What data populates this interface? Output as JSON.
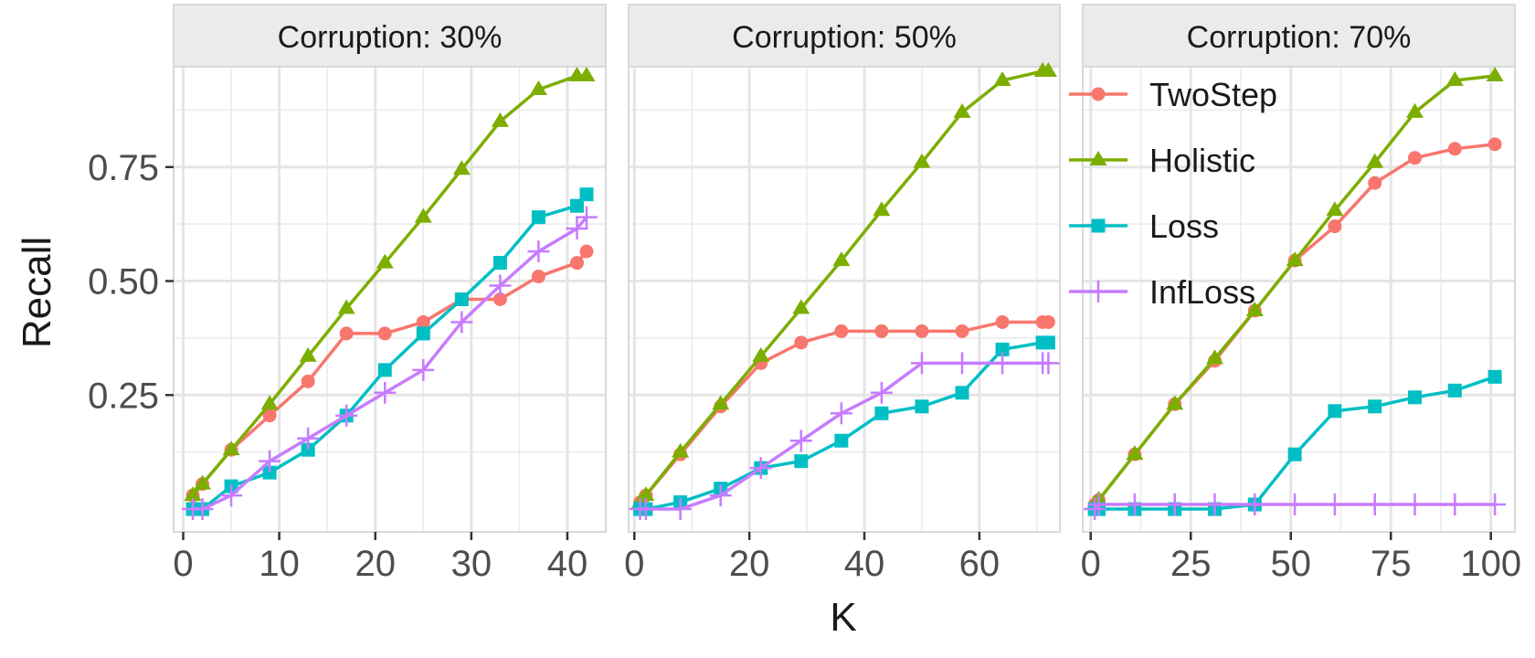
{
  "chart_data": {
    "type": "line",
    "xlabel": "K",
    "ylabel": "Recall",
    "y_ticks": [
      0.25,
      0.5,
      0.75
    ],
    "y_tick_labels": [
      "0.25",
      "0.50",
      "0.75"
    ],
    "ylim": [
      -0.05,
      0.97
    ],
    "grid": true,
    "legend_position": "right, inside last panel",
    "legend": [
      {
        "name": "TwoStep",
        "color": "#F8766D",
        "shape": "circle"
      },
      {
        "name": "Holistic",
        "color": "#7CAE00",
        "shape": "triangle"
      },
      {
        "name": "Loss",
        "color": "#00BFC4",
        "shape": "square"
      },
      {
        "name": "InfLoss",
        "color": "#C77CFF",
        "shape": "plus"
      }
    ],
    "panels": [
      {
        "strip": "Corruption: 30%",
        "xlim": [
          -1,
          44
        ],
        "x_ticks": [
          0,
          10,
          20,
          30,
          40
        ],
        "series": [
          {
            "name": "TwoStep",
            "points": [
              [
                1,
                0.03
              ],
              [
                2,
                0.055
              ],
              [
                5,
                0.13
              ],
              [
                9,
                0.205
              ],
              [
                13,
                0.28
              ],
              [
                17,
                0.385
              ],
              [
                21,
                0.385
              ],
              [
                25,
                0.41
              ],
              [
                29,
                0.46
              ],
              [
                33,
                0.46
              ],
              [
                37,
                0.51
              ],
              [
                41,
                0.54
              ],
              [
                42,
                0.565
              ]
            ]
          },
          {
            "name": "Holistic",
            "points": [
              [
                1,
                0.03
              ],
              [
                2,
                0.055
              ],
              [
                5,
                0.13
              ],
              [
                9,
                0.23
              ],
              [
                13,
                0.335
              ],
              [
                17,
                0.44
              ],
              [
                21,
                0.54
              ],
              [
                25,
                0.64
              ],
              [
                29,
                0.745
              ],
              [
                33,
                0.85
              ],
              [
                37,
                0.92
              ],
              [
                41,
                0.95
              ],
              [
                42,
                0.95
              ]
            ]
          },
          {
            "name": "Loss",
            "points": [
              [
                1,
                0.0
              ],
              [
                2,
                0.0
              ],
              [
                5,
                0.05
              ],
              [
                9,
                0.08
              ],
              [
                13,
                0.13
              ],
              [
                17,
                0.205
              ],
              [
                21,
                0.305
              ],
              [
                25,
                0.385
              ],
              [
                29,
                0.46
              ],
              [
                33,
                0.54
              ],
              [
                37,
                0.64
              ],
              [
                41,
                0.665
              ],
              [
                42,
                0.69
              ]
            ]
          },
          {
            "name": "InfLoss",
            "points": [
              [
                1,
                0.0
              ],
              [
                2,
                0.0
              ],
              [
                5,
                0.03
              ],
              [
                9,
                0.105
              ],
              [
                13,
                0.155
              ],
              [
                17,
                0.205
              ],
              [
                21,
                0.255
              ],
              [
                25,
                0.305
              ],
              [
                29,
                0.41
              ],
              [
                33,
                0.49
              ],
              [
                37,
                0.565
              ],
              [
                41,
                0.615
              ],
              [
                42,
                0.64
              ]
            ]
          }
        ]
      },
      {
        "strip": "Corruption: 50%",
        "xlim": [
          -1,
          74
        ],
        "x_ticks": [
          0,
          20,
          40,
          60
        ],
        "series": [
          {
            "name": "TwoStep",
            "points": [
              [
                1,
                0.015
              ],
              [
                2,
                0.03
              ],
              [
                8,
                0.12
              ],
              [
                15,
                0.225
              ],
              [
                22,
                0.32
              ],
              [
                29,
                0.365
              ],
              [
                36,
                0.39
              ],
              [
                43,
                0.39
              ],
              [
                50,
                0.39
              ],
              [
                57,
                0.39
              ],
              [
                64,
                0.41
              ],
              [
                71,
                0.41
              ],
              [
                72,
                0.41
              ]
            ]
          },
          {
            "name": "Holistic",
            "points": [
              [
                1,
                0.015
              ],
              [
                2,
                0.03
              ],
              [
                8,
                0.125
              ],
              [
                15,
                0.23
              ],
              [
                22,
                0.335
              ],
              [
                29,
                0.44
              ],
              [
                36,
                0.545
              ],
              [
                43,
                0.655
              ],
              [
                50,
                0.76
              ],
              [
                57,
                0.87
              ],
              [
                64,
                0.94
              ],
              [
                71,
                0.96
              ],
              [
                72,
                0.96
              ]
            ]
          },
          {
            "name": "Loss",
            "points": [
              [
                1,
                0.0
              ],
              [
                2,
                0.0
              ],
              [
                8,
                0.015
              ],
              [
                15,
                0.045
              ],
              [
                22,
                0.09
              ],
              [
                29,
                0.105
              ],
              [
                36,
                0.15
              ],
              [
                43,
                0.21
              ],
              [
                50,
                0.225
              ],
              [
                57,
                0.255
              ],
              [
                64,
                0.35
              ],
              [
                71,
                0.365
              ],
              [
                72,
                0.365
              ]
            ]
          },
          {
            "name": "InfLoss",
            "points": [
              [
                1,
                0.0
              ],
              [
                2,
                0.0
              ],
              [
                8,
                0.0
              ],
              [
                15,
                0.03
              ],
              [
                22,
                0.09
              ],
              [
                29,
                0.15
              ],
              [
                36,
                0.21
              ],
              [
                43,
                0.255
              ],
              [
                50,
                0.32
              ],
              [
                57,
                0.32
              ],
              [
                64,
                0.32
              ],
              [
                71,
                0.32
              ],
              [
                72,
                0.32
              ]
            ]
          }
        ]
      },
      {
        "strip": "Corruption: 70%",
        "xlim": [
          -2,
          106
        ],
        "x_ticks": [
          0,
          25,
          50,
          75,
          100
        ],
        "x_tick_labels": [
          "0",
          "25",
          "50",
          "75",
          "100"
        ],
        "series": [
          {
            "name": "TwoStep",
            "points": [
              [
                1,
                0.01
              ],
              [
                2,
                0.02
              ],
              [
                11,
                0.12
              ],
              [
                21,
                0.23
              ],
              [
                31,
                0.325
              ],
              [
                41,
                0.435
              ],
              [
                51,
                0.545
              ],
              [
                61,
                0.62
              ],
              [
                71,
                0.715
              ],
              [
                81,
                0.77
              ],
              [
                91,
                0.79
              ],
              [
                101,
                0.8
              ]
            ]
          },
          {
            "name": "Holistic",
            "points": [
              [
                1,
                0.01
              ],
              [
                2,
                0.02
              ],
              [
                11,
                0.12
              ],
              [
                21,
                0.23
              ],
              [
                31,
                0.33
              ],
              [
                41,
                0.435
              ],
              [
                51,
                0.545
              ],
              [
                61,
                0.655
              ],
              [
                71,
                0.76
              ],
              [
                81,
                0.87
              ],
              [
                91,
                0.94
              ],
              [
                101,
                0.95
              ]
            ]
          },
          {
            "name": "Loss",
            "points": [
              [
                1,
                0.0
              ],
              [
                2,
                0.0
              ],
              [
                11,
                0.0
              ],
              [
                21,
                0.0
              ],
              [
                31,
                0.0
              ],
              [
                41,
                0.01
              ],
              [
                51,
                0.12
              ],
              [
                61,
                0.215
              ],
              [
                71,
                0.225
              ],
              [
                81,
                0.245
              ],
              [
                91,
                0.26
              ],
              [
                101,
                0.29
              ]
            ]
          },
          {
            "name": "InfLoss",
            "points": [
              [
                1,
                0.0
              ],
              [
                2,
                0.01
              ],
              [
                11,
                0.01
              ],
              [
                21,
                0.01
              ],
              [
                31,
                0.01
              ],
              [
                41,
                0.01
              ],
              [
                51,
                0.01
              ],
              [
                61,
                0.01
              ],
              [
                71,
                0.01
              ],
              [
                81,
                0.01
              ],
              [
                91,
                0.01
              ],
              [
                101,
                0.01
              ]
            ]
          }
        ]
      }
    ]
  }
}
